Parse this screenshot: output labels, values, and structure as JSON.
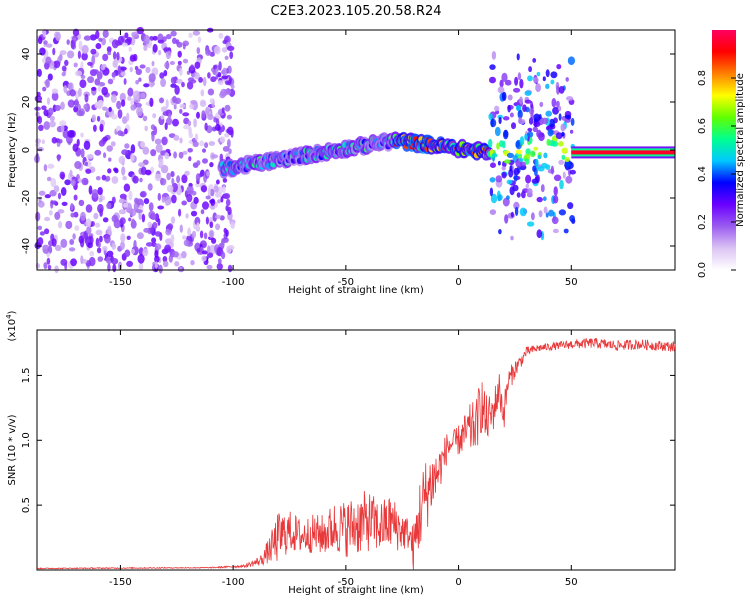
{
  "title": "C2E3.2023.105.20.58.R24",
  "chart_data": [
    {
      "type": "heatmap",
      "xlabel": "Height of straight line (km)",
      "ylabel": "Frequency (Hz)",
      "xlim": [
        -187,
        96
      ],
      "ylim": [
        -50,
        50
      ],
      "xticks": [
        -150,
        -100,
        -50,
        0,
        50
      ],
      "yticks": [
        -40,
        -20,
        0,
        20,
        40
      ],
      "colorbar": {
        "label": "Normalized spectral amplitude",
        "ticks": [
          0.0,
          0.2,
          0.4,
          0.6,
          0.8
        ],
        "range": [
          0,
          1
        ],
        "colors": [
          "#ffffff",
          "#dcc4f4",
          "#9a5cf0",
          "#6a00ff",
          "#0000ff",
          "#00c8ff",
          "#00ff90",
          "#60ff00",
          "#ffff00",
          "#ff8000",
          "#ff0000",
          "#ff0060"
        ]
      },
      "regions": [
        {
          "name": "noise",
          "x": [
            -187,
            -100
          ],
          "y": [
            -50,
            50
          ],
          "amplitude": 0.12
        },
        {
          "name": "ridge",
          "x": [
            -105,
            -28
          ],
          "y_start": -8,
          "y_end": 4,
          "amplitude": 0.45
        },
        {
          "name": "ridge",
          "x": [
            -28,
            14
          ],
          "y_start": 4,
          "y_end": -1,
          "amplitude": 0.75
        },
        {
          "name": "burst",
          "x": [
            14,
            51
          ],
          "y": [
            -40,
            40
          ],
          "amplitude": 0.2
        },
        {
          "name": "steady",
          "x": [
            50,
            96
          ],
          "y": -1,
          "amplitude": 0.95
        }
      ]
    },
    {
      "type": "line",
      "xlabel": "Height of straight line (km)",
      "ylabel": "SNR (10 * v/v)",
      "yscale_label": "(x10",
      "yscale_exp": "4",
      "yscale_close": ")",
      "xlim": [
        -187,
        96
      ],
      "ylim": [
        0,
        1.85
      ],
      "xticks": [
        -150,
        -100,
        -50,
        0,
        50
      ],
      "yticks": [
        0.5,
        1.0,
        1.5
      ],
      "yticklabels": [
        "0.5",
        "1.0",
        "1.5"
      ],
      "color": "#e8383a",
      "x": [
        -187,
        -150,
        -110,
        -95,
        -88,
        -84,
        -80,
        -75,
        -70,
        -65,
        -60,
        -55,
        -50,
        -45,
        -40,
        -35,
        -30,
        -25,
        -22,
        -20,
        -17,
        -15,
        -12,
        -10,
        -8,
        -5,
        -2,
        0,
        3,
        5,
        8,
        10,
        12,
        15,
        18,
        20,
        22,
        25,
        28,
        30,
        35,
        40,
        45,
        50,
        55,
        60,
        70,
        80,
        96
      ],
      "values": [
        0.012,
        0.015,
        0.018,
        0.03,
        0.07,
        0.15,
        0.25,
        0.3,
        0.26,
        0.28,
        0.27,
        0.33,
        0.32,
        0.35,
        0.38,
        0.33,
        0.37,
        0.3,
        0.28,
        0.15,
        0.45,
        0.55,
        0.68,
        0.72,
        0.8,
        0.95,
        0.98,
        1.0,
        1.05,
        1.08,
        1.12,
        1.3,
        1.15,
        1.2,
        1.4,
        1.2,
        1.45,
        1.55,
        1.62,
        1.68,
        1.71,
        1.72,
        1.73,
        1.74,
        1.745,
        1.75,
        1.73,
        1.74,
        1.72
      ],
      "noise": [
        0.004,
        0.004,
        0.004,
        0.01,
        0.04,
        0.1,
        0.2,
        0.16,
        0.14,
        0.15,
        0.16,
        0.2,
        0.22,
        0.24,
        0.24,
        0.2,
        0.22,
        0.16,
        0.12,
        0.2,
        0.3,
        0.3,
        0.25,
        0.22,
        0.16,
        0.12,
        0.1,
        0.12,
        0.16,
        0.2,
        0.2,
        0.25,
        0.2,
        0.16,
        0.14,
        0.14,
        0.1,
        0.07,
        0.05,
        0.04,
        0.03,
        0.03,
        0.03,
        0.035,
        0.04,
        0.04,
        0.04,
        0.04,
        0.04
      ]
    }
  ]
}
